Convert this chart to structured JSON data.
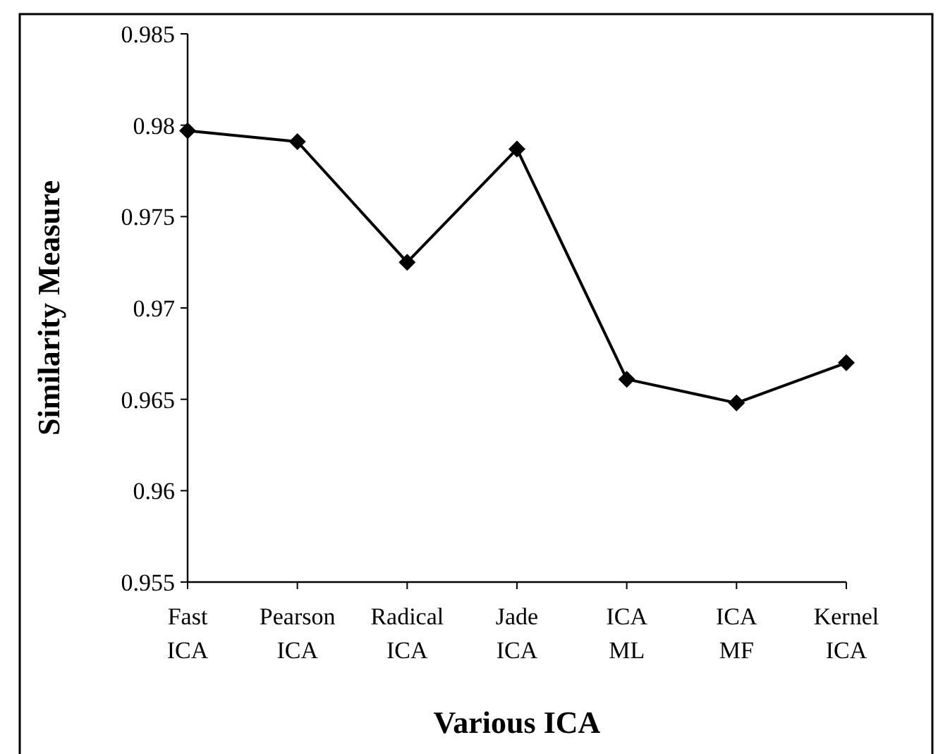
{
  "chart_data": {
    "type": "line",
    "xlabel": "Various ICA",
    "ylabel": "Similarity Measure",
    "categories": [
      "Fast ICA",
      "Pearson ICA",
      "Radical ICA",
      "Jade ICA",
      "ICA ML",
      "ICA MF",
      "Kernel ICA"
    ],
    "values": [
      0.9797,
      0.9791,
      0.9725,
      0.9787,
      0.9661,
      0.9648,
      0.967
    ],
    "color": "#000000",
    "marker": "diamond",
    "line_style": "solid",
    "ylim": [
      0.955,
      0.985
    ],
    "yticks": [
      0.955,
      0.96,
      0.965,
      0.97,
      0.975,
      0.98,
      0.985
    ]
  }
}
